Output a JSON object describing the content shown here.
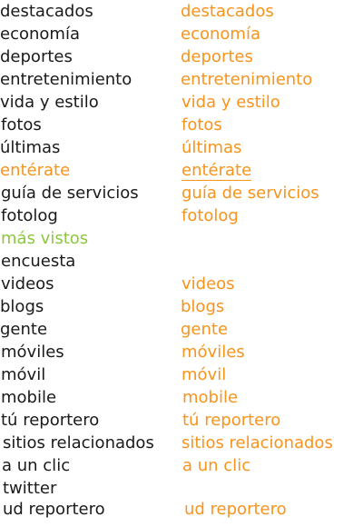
{
  "colors": {
    "default_text": "#1a1a1a",
    "accent_orange": "#f7941d",
    "accent_green": "#8dc63f",
    "background": "#ffffff"
  },
  "left_menu": {
    "items": [
      {
        "label": "destacados",
        "state": "normal"
      },
      {
        "label": "economía",
        "state": "normal"
      },
      {
        "label": "deportes",
        "state": "normal"
      },
      {
        "label": "entretenimiento",
        "state": "normal"
      },
      {
        "label": "vida y estilo",
        "state": "normal"
      },
      {
        "label": "fotos",
        "state": "normal"
      },
      {
        "label": "últimas",
        "state": "normal"
      },
      {
        "label": "entérate",
        "state": "active"
      },
      {
        "label": "guía de servicios",
        "state": "normal"
      },
      {
        "label": "fotolog",
        "state": "normal"
      },
      {
        "label": "más vistos",
        "state": "highlight"
      },
      {
        "label": "encuesta",
        "state": "normal"
      },
      {
        "label": "videos",
        "state": "normal"
      },
      {
        "label": "blogs",
        "state": "normal"
      },
      {
        "label": "gente",
        "state": "normal"
      },
      {
        "label": "móviles",
        "state": "normal"
      },
      {
        "label": "móvil",
        "state": "normal"
      },
      {
        "label": "mobile",
        "state": "normal"
      },
      {
        "label": "tú reportero",
        "state": "normal"
      },
      {
        "label": "sitios relacionados",
        "state": "normal"
      },
      {
        "label": "a un clic",
        "state": "normal"
      },
      {
        "label": "twitter",
        "state": "normal"
      },
      {
        "label": "ud reportero",
        "state": "normal"
      }
    ]
  },
  "right_menu": {
    "items": [
      {
        "label": "destacados",
        "state": "hover"
      },
      {
        "label": "economía",
        "state": "hover"
      },
      {
        "label": "deportes",
        "state": "hover"
      },
      {
        "label": "entretenimiento",
        "state": "hover"
      },
      {
        "label": "vida y estilo",
        "state": "hover"
      },
      {
        "label": "fotos",
        "state": "hover"
      },
      {
        "label": "últimas",
        "state": "hover"
      },
      {
        "label": "entérate",
        "state": "active-underline"
      },
      {
        "label": "guía de servicios",
        "state": "hover"
      },
      {
        "label": "fotolog",
        "state": "hover"
      },
      {
        "label": "videos",
        "state": "hover"
      },
      {
        "label": "blogs",
        "state": "hover"
      },
      {
        "label": "gente",
        "state": "hover"
      },
      {
        "label": "móviles",
        "state": "hover"
      },
      {
        "label": "móvil",
        "state": "hover"
      },
      {
        "label": "mobile",
        "state": "hover"
      },
      {
        "label": "tú reportero",
        "state": "hover"
      },
      {
        "label": "sitios relacionados",
        "state": "hover"
      },
      {
        "label": "a un clic",
        "state": "hover"
      },
      {
        "label": "ud reportero",
        "state": "hover"
      }
    ]
  }
}
